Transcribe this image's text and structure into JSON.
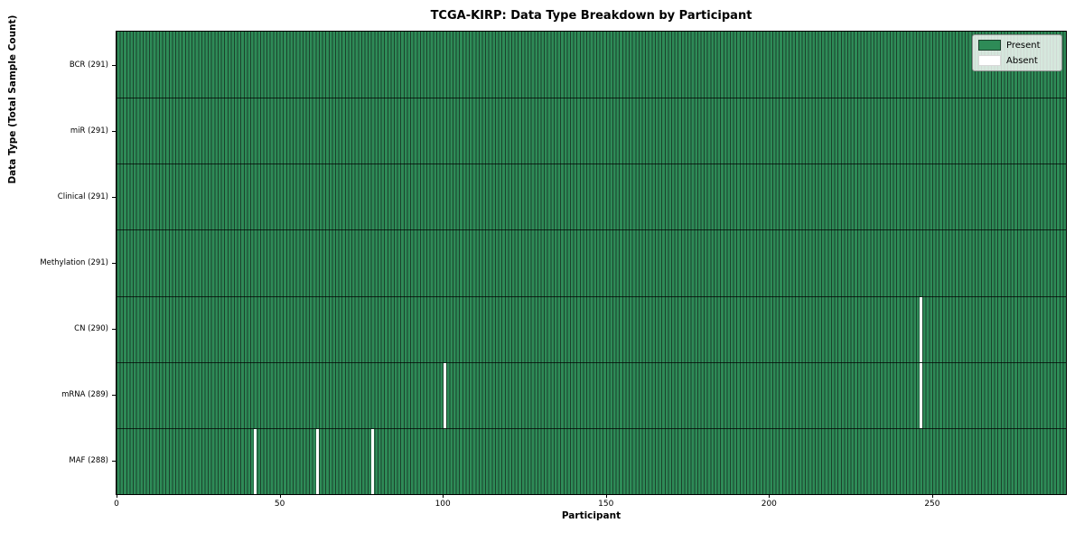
{
  "title": "TCGA-KIRP: Data Type Breakdown by Participant",
  "chart_data": {
    "type": "heatmap",
    "title": "TCGA-KIRP: Data Type Breakdown by Participant",
    "xlabel": "Participant",
    "ylabel": "Data Type (Total Sample Count)",
    "x_range": [
      0,
      291
    ],
    "n_participants": 291,
    "x_ticks": [
      0,
      50,
      100,
      150,
      200,
      250
    ],
    "grid": false,
    "legend_position": "upper right",
    "rows": [
      {
        "name": "BCR",
        "label": "BCR (291)",
        "count": 291,
        "absent_participants": []
      },
      {
        "name": "miR",
        "label": "miR (291)",
        "count": 291,
        "absent_participants": []
      },
      {
        "name": "Clinical",
        "label": "Clinical (291)",
        "count": 291,
        "absent_participants": []
      },
      {
        "name": "Methylation",
        "label": "Methylation (291)",
        "count": 291,
        "absent_participants": []
      },
      {
        "name": "CN",
        "label": "CN (290)",
        "count": 290,
        "absent_participants": [
          246
        ]
      },
      {
        "name": "mRNA",
        "label": "mRNA (289)",
        "count": 289,
        "absent_participants": [
          100,
          246
        ]
      },
      {
        "name": "MAF",
        "label": "MAF (288)",
        "count": 288,
        "absent_participants": [
          42,
          61,
          78
        ]
      }
    ],
    "legend": [
      {
        "label": "Present",
        "color": "#2e8b57"
      },
      {
        "label": "Absent",
        "color": "#ffffff"
      }
    ],
    "colors": {
      "present": "#2e8b57",
      "absent": "#ffffff",
      "cell_edge": "#1b422c",
      "row_divider": "#101f16",
      "spine": "#000000",
      "legend_border": "#8f8f8f"
    }
  }
}
